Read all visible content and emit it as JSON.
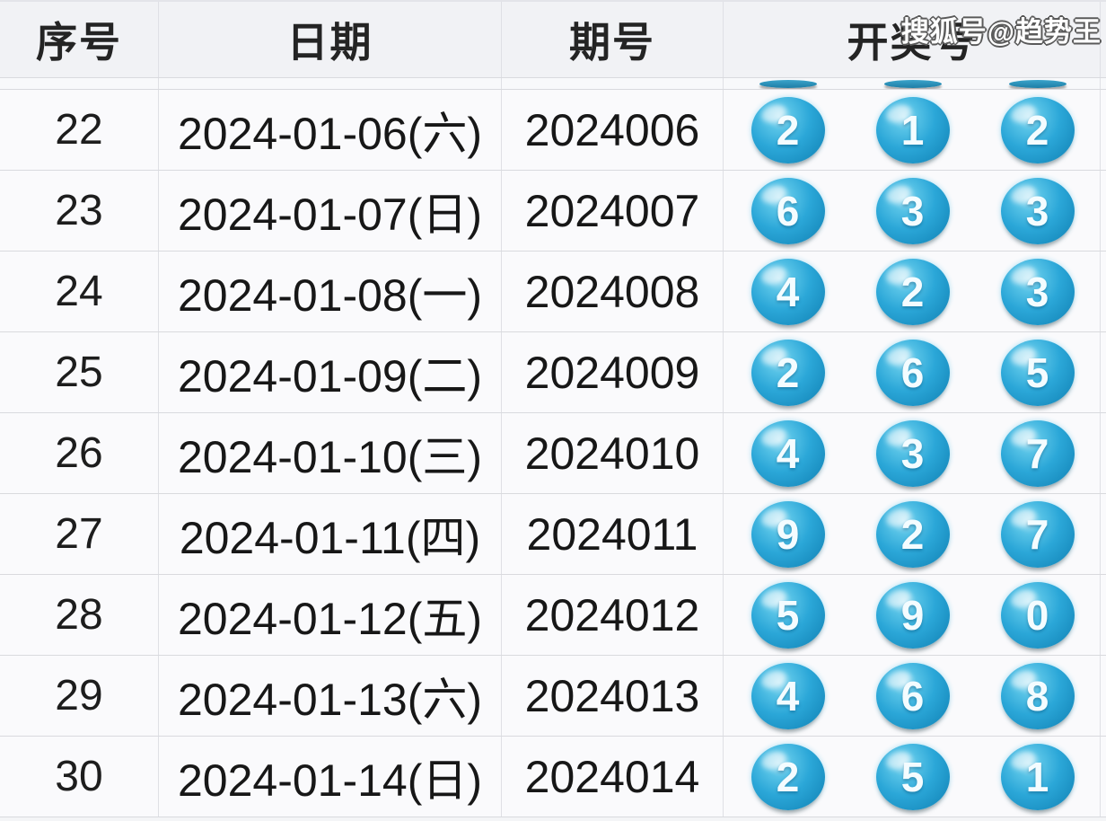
{
  "watermark": "搜狐号@趋势王",
  "colors": {
    "ball_main": "#2ba7d8",
    "ball_dark": "#1a82b2",
    "ball_highlight": "#a9e2f4",
    "header_bg": "#f1f2f5",
    "row_bg": "#fafafc",
    "border": "#d9dade",
    "text": "#171717",
    "ball_number_text": "#f4fcff",
    "watermark_text": "#ffffff"
  },
  "chart_data": {
    "type": "table",
    "columns": [
      "序号",
      "日期",
      "期号",
      "开奖号"
    ],
    "rows": [
      {
        "seq": "22",
        "date": "2024-01-06(六)",
        "issue": "2024006",
        "balls": [
          "2",
          "1",
          "2"
        ]
      },
      {
        "seq": "23",
        "date": "2024-01-07(日)",
        "issue": "2024007",
        "balls": [
          "6",
          "3",
          "3"
        ]
      },
      {
        "seq": "24",
        "date": "2024-01-08(一)",
        "issue": "2024008",
        "balls": [
          "4",
          "2",
          "3"
        ]
      },
      {
        "seq": "25",
        "date": "2024-01-09(二)",
        "issue": "2024009",
        "balls": [
          "2",
          "6",
          "5"
        ]
      },
      {
        "seq": "26",
        "date": "2024-01-10(三)",
        "issue": "2024010",
        "balls": [
          "4",
          "3",
          "7"
        ]
      },
      {
        "seq": "27",
        "date": "2024-01-11(四)",
        "issue": "2024011",
        "balls": [
          "9",
          "2",
          "7"
        ]
      },
      {
        "seq": "28",
        "date": "2024-01-12(五)",
        "issue": "2024012",
        "balls": [
          "5",
          "9",
          "0"
        ]
      },
      {
        "seq": "29",
        "date": "2024-01-13(六)",
        "issue": "2024013",
        "balls": [
          "4",
          "6",
          "8"
        ]
      },
      {
        "seq": "30",
        "date": "2024-01-14(日)",
        "issue": "2024014",
        "balls": [
          "2",
          "5",
          "1"
        ]
      }
    ],
    "partial_top_row_ball_bottoms": 3
  }
}
